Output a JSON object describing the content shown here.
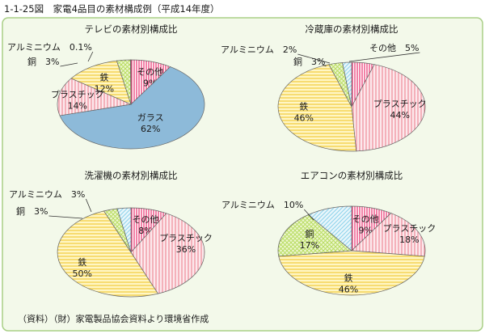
{
  "figure": {
    "title": "1-1-25図　家電4品目の素材構成例（平成14年度）",
    "source": "（資料）（財）家電製品協会資料より環境省作成"
  },
  "colors": {
    "background": "#f3f9ea",
    "border": "#a9cf86",
    "plastic": "#ef8d9a",
    "iron": "#f4d24e",
    "copper": "#b9dc62",
    "aluminum": "#8ed3ec",
    "other": "#ec3f78",
    "glass": "#8dbad9"
  },
  "chart_data": [
    {
      "type": "pie",
      "title": "テレビの素材別構成比",
      "slices": [
        {
          "key": "other",
          "name": "その他",
          "value": 9,
          "label": "9%"
        },
        {
          "key": "glass",
          "name": "ガラス",
          "value": 62,
          "label": "62%"
        },
        {
          "key": "plastic",
          "name": "プラスチック",
          "value": 14,
          "label": "14%"
        },
        {
          "key": "iron",
          "name": "鉄",
          "value": 12,
          "label": "12%"
        },
        {
          "key": "copper",
          "name": "銅",
          "value": 3,
          "label": "3%"
        },
        {
          "key": "aluminum",
          "name": "アルミニウム",
          "value": 0.1,
          "label": "0.1%"
        }
      ]
    },
    {
      "type": "pie",
      "title": "冷蔵庫の素材別構成比",
      "slices": [
        {
          "key": "other",
          "name": "その他",
          "value": 5,
          "label": "5%"
        },
        {
          "key": "plastic",
          "name": "プラスチック",
          "value": 44,
          "label": "44%"
        },
        {
          "key": "iron",
          "name": "鉄",
          "value": 46,
          "label": "46%"
        },
        {
          "key": "copper",
          "name": "銅",
          "value": 3,
          "label": "3%"
        },
        {
          "key": "aluminum",
          "name": "アルミニウム",
          "value": 2,
          "label": "2%"
        }
      ]
    },
    {
      "type": "pie",
      "title": "洗濯機の素材別構成比",
      "slices": [
        {
          "key": "other",
          "name": "その他",
          "value": 8,
          "label": "8%"
        },
        {
          "key": "plastic",
          "name": "プラスチック",
          "value": 36,
          "label": "36%"
        },
        {
          "key": "iron",
          "name": "鉄",
          "value": 50,
          "label": "50%"
        },
        {
          "key": "copper",
          "name": "銅",
          "value": 3,
          "label": "3%"
        },
        {
          "key": "aluminum",
          "name": "アルミニウム",
          "value": 3,
          "label": "3%"
        }
      ]
    },
    {
      "type": "pie",
      "title": "エアコンの素材別構成比",
      "slices": [
        {
          "key": "other",
          "name": "その他",
          "value": 9,
          "label": "9%"
        },
        {
          "key": "plastic",
          "name": "プラスチック",
          "value": 18,
          "label": "18%"
        },
        {
          "key": "iron",
          "name": "鉄",
          "value": 46,
          "label": "46%"
        },
        {
          "key": "copper",
          "name": "銅",
          "value": 17,
          "label": "17%"
        },
        {
          "key": "aluminum",
          "name": "アルミニウム",
          "value": 10,
          "label": "10%"
        }
      ]
    }
  ]
}
